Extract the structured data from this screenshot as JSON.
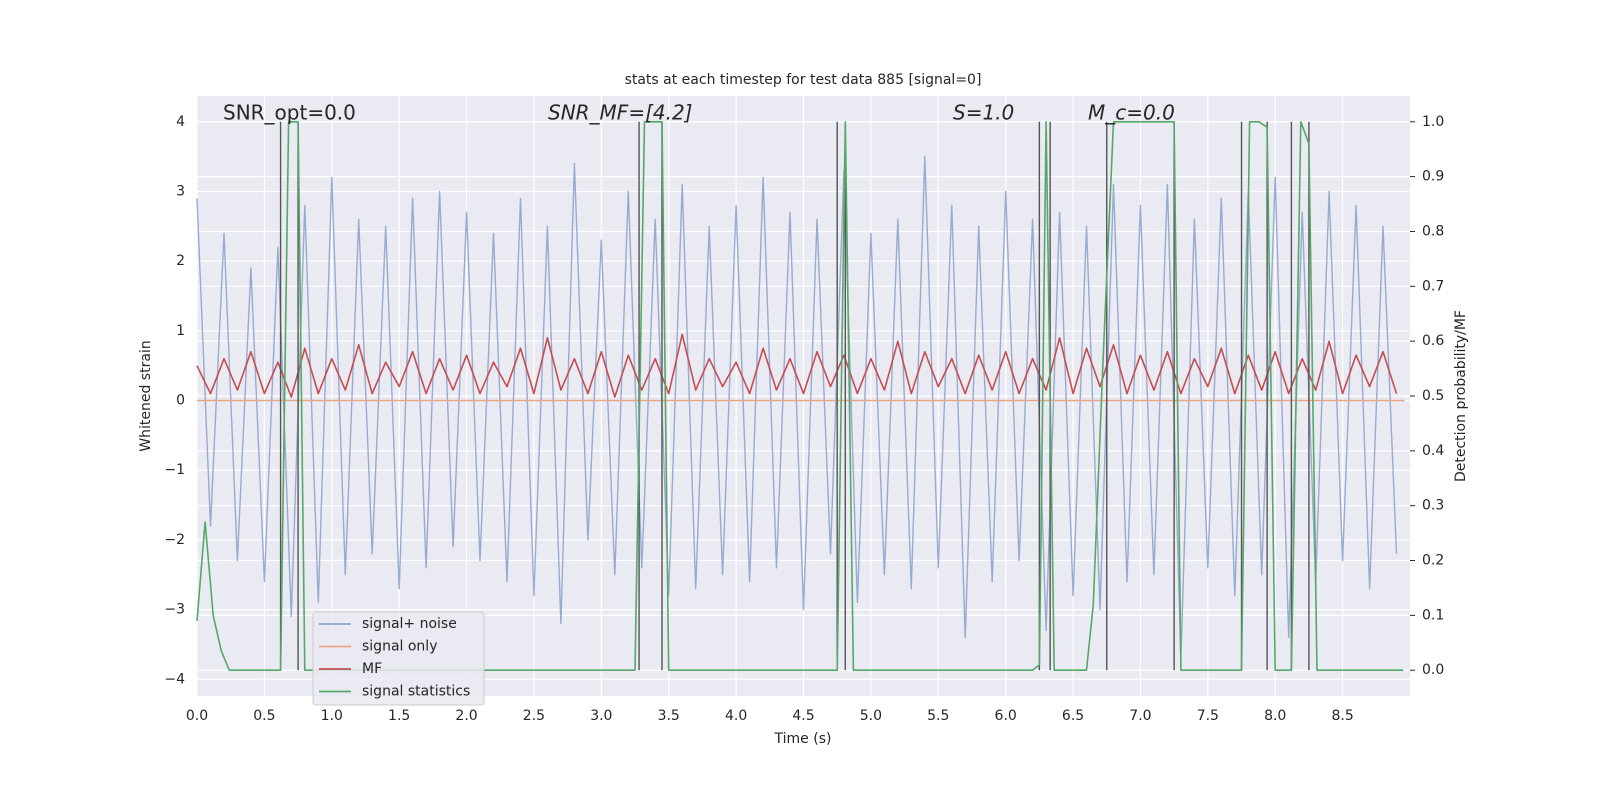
{
  "chart_data": {
    "type": "line",
    "title": "stats at each timestep for test data 885 [signal=0]",
    "xlabel": "Time (s)",
    "ylabel": "Whitened strain",
    "y2label": "Detection probability/MF",
    "annotations": [
      "SNR_opt=0.0",
      "SNR_MF=[4.2]",
      "S=1.0",
      "M_c=0.0"
    ],
    "xlim": [
      0,
      9.0
    ],
    "xticks": [
      {
        "value": 0,
        "label": "0.0"
      },
      0.5,
      {
        "value": 1,
        "label": "1.0"
      },
      1.5,
      {
        "value": 2,
        "label": "2.0"
      },
      2.5,
      {
        "value": 3,
        "label": "3.0"
      },
      3.5,
      {
        "value": 4,
        "label": "4.0"
      },
      4.5,
      {
        "value": 5,
        "label": "5.0"
      },
      5.5,
      {
        "value": 6,
        "label": "6.0"
      },
      6.5,
      {
        "value": 7,
        "label": "7.0"
      },
      7.5,
      {
        "value": 8,
        "label": "8.0"
      },
      8.5
    ],
    "ylim": [
      -4.24,
      4.37
    ],
    "yticks": [
      {
        "value": -4,
        "label": "−4"
      },
      {
        "value": -3,
        "label": "−3"
      },
      {
        "value": -2,
        "label": "−2"
      },
      {
        "value": -1,
        "label": "−1"
      },
      0,
      1,
      2,
      3,
      4
    ],
    "y2lim": [
      -0.047,
      1.047
    ],
    "y2ticks": [
      {
        "value": 0,
        "label": "0.0"
      },
      0.1,
      0.2,
      0.3,
      0.4,
      0.5,
      0.6,
      0.7,
      0.8,
      0.9,
      {
        "value": 1,
        "label": "1.0"
      }
    ],
    "grid": true,
    "legend": "lower left",
    "vlines": [
      0.62,
      0.75,
      3.28,
      3.45,
      4.75,
      4.81,
      6.25,
      6.33,
      6.75,
      7.25,
      7.75,
      7.94,
      8.12,
      8.25
    ],
    "vline_color": "#555555",
    "series": [
      {
        "name": "signal+ noise",
        "color": "#8fa3cc",
        "x": [
          0,
          0.1,
          0.2,
          0.3,
          0.4,
          0.5,
          0.6,
          0.7,
          0.8,
          0.9,
          1,
          1.1,
          1.2,
          1.3,
          1.4,
          1.5,
          1.6,
          1.7,
          1.8,
          1.9,
          2,
          2.1,
          2.2,
          2.3,
          2.4,
          2.5,
          2.6,
          2.7,
          2.8,
          2.9,
          3,
          3.1,
          3.2,
          3.3,
          3.4,
          3.5,
          3.6,
          3.7,
          3.8,
          3.9,
          4,
          4.1,
          4.2,
          4.3,
          4.4,
          4.5,
          4.6,
          4.7,
          4.8,
          4.9,
          5,
          5.1,
          5.2,
          5.3,
          5.4,
          5.5,
          5.6,
          5.7,
          5.8,
          5.9,
          6,
          6.1,
          6.2,
          6.3,
          6.4,
          6.5,
          6.6,
          6.7,
          6.8,
          6.9,
          7,
          7.1,
          7.2,
          7.3,
          7.4,
          7.5,
          7.6,
          7.7,
          7.8,
          7.9,
          8,
          8.1,
          8.2,
          8.3,
          8.4,
          8.5,
          8.6,
          8.7,
          8.8,
          8.9
        ],
        "values": [
          2.9,
          -1.8,
          2.4,
          -2.3,
          1.9,
          -2.6,
          2.2,
          -3.1,
          2.8,
          -2.9,
          3.2,
          -2.5,
          2.6,
          -2.2,
          2.5,
          -2.7,
          2.9,
          -2.4,
          3.0,
          -2.1,
          2.7,
          -2.3,
          2.4,
          -2.6,
          2.9,
          -2.8,
          2.5,
          -3.2,
          3.4,
          -2.0,
          2.3,
          -2.5,
          3.0,
          -2.4,
          2.6,
          -2.8,
          3.1,
          -2.7,
          2.5,
          -2.5,
          2.8,
          -2.6,
          3.2,
          -2.4,
          2.7,
          -3.0,
          2.6,
          -2.2,
          3.3,
          -2.9,
          2.4,
          -2.5,
          2.6,
          -2.7,
          3.5,
          -2.4,
          2.8,
          -3.4,
          2.5,
          -2.6,
          3.0,
          -2.3,
          2.6,
          -3.3,
          2.7,
          -2.8,
          2.5,
          -3.0,
          3.1,
          -2.6,
          2.8,
          -2.5,
          3.1,
          -3.7,
          2.6,
          -2.4,
          2.9,
          -2.8,
          3.0,
          -2.5,
          3.2,
          -3.4,
          2.7,
          -2.6,
          3.0,
          -2.3,
          2.8,
          -2.7,
          2.5,
          -2.2
        ]
      },
      {
        "name": "signal only",
        "color": "#e8a58a",
        "x": [
          0,
          8.96
        ],
        "values": [
          0,
          0
        ]
      },
      {
        "name": "MF",
        "color": "#c44e52",
        "x": [
          0,
          0.1,
          0.2,
          0.3,
          0.4,
          0.5,
          0.6,
          0.7,
          0.8,
          0.9,
          1,
          1.1,
          1.2,
          1.3,
          1.4,
          1.5,
          1.6,
          1.7,
          1.8,
          1.9,
          2,
          2.1,
          2.2,
          2.3,
          2.4,
          2.5,
          2.6,
          2.7,
          2.8,
          2.9,
          3,
          3.1,
          3.2,
          3.3,
          3.4,
          3.5,
          3.6,
          3.7,
          3.8,
          3.9,
          4,
          4.1,
          4.2,
          4.3,
          4.4,
          4.5,
          4.6,
          4.7,
          4.8,
          4.9,
          5,
          5.1,
          5.2,
          5.3,
          5.4,
          5.5,
          5.6,
          5.7,
          5.8,
          5.9,
          6,
          6.1,
          6.2,
          6.3,
          6.4,
          6.5,
          6.6,
          6.7,
          6.8,
          6.9,
          7,
          7.1,
          7.2,
          7.3,
          7.4,
          7.5,
          7.6,
          7.7,
          7.8,
          7.9,
          8,
          8.1,
          8.2,
          8.3,
          8.4,
          8.5,
          8.6,
          8.7,
          8.8,
          8.9
        ],
        "values": [
          0.5,
          0.1,
          0.6,
          0.15,
          0.7,
          0.1,
          0.55,
          0.05,
          0.75,
          0.1,
          0.6,
          0.15,
          0.8,
          0.1,
          0.55,
          0.2,
          0.7,
          0.1,
          0.6,
          0.15,
          0.65,
          0.1,
          0.55,
          0.2,
          0.75,
          0.1,
          0.9,
          0.15,
          0.6,
          0.1,
          0.7,
          0.05,
          0.65,
          0.15,
          0.6,
          0.1,
          0.95,
          0.15,
          0.6,
          0.2,
          0.55,
          0.1,
          0.75,
          0.15,
          0.6,
          0.1,
          0.7,
          0.2,
          0.65,
          0.1,
          0.6,
          0.15,
          0.85,
          0.1,
          0.7,
          0.2,
          0.6,
          0.1,
          0.65,
          0.15,
          0.7,
          0.1,
          0.6,
          0.15,
          0.9,
          0.1,
          0.75,
          0.2,
          0.8,
          0.1,
          0.65,
          0.15,
          0.7,
          0.1,
          0.6,
          0.2,
          0.75,
          0.1,
          0.65,
          0.15,
          0.7,
          0.1,
          0.6,
          0.15,
          0.85,
          0.1,
          0.65,
          0.2,
          0.7,
          0.1
        ]
      },
      {
        "name": "signal statistics",
        "color": "#55a868",
        "axis": "y2",
        "x": [
          0,
          0.06,
          0.12,
          0.18,
          0.24,
          0.62,
          0.68,
          0.75,
          0.8,
          3.25,
          3.32,
          3.45,
          3.5,
          4.75,
          4.81,
          4.87,
          6.2,
          6.25,
          6.3,
          6.36,
          6.6,
          6.65,
          6.72,
          6.8,
          7.25,
          7.3,
          7.75,
          7.81,
          7.88,
          7.94,
          8.0,
          8.12,
          8.19,
          8.25,
          8.31,
          8.95
        ],
        "values": [
          0.09,
          0.27,
          0.1,
          0.035,
          0,
          0,
          1,
          1,
          0,
          0,
          1,
          1,
          0,
          0,
          1,
          0,
          0,
          0.01,
          1,
          0,
          0,
          0.12,
          0.55,
          1,
          1,
          0,
          0,
          1,
          1,
          0.99,
          0,
          0,
          1,
          0.96,
          0,
          0
        ]
      }
    ]
  }
}
